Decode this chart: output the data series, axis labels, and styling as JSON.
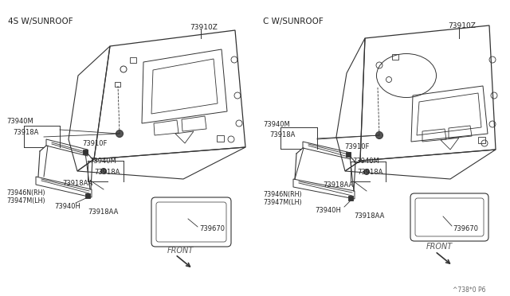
{
  "bg_color": "#ffffff",
  "left_label": "4S W/SUNROOF",
  "right_label": "C W/SUNROOF",
  "watermark": "^738*0 P6",
  "line_color": "#333333",
  "text_color": "#222222"
}
